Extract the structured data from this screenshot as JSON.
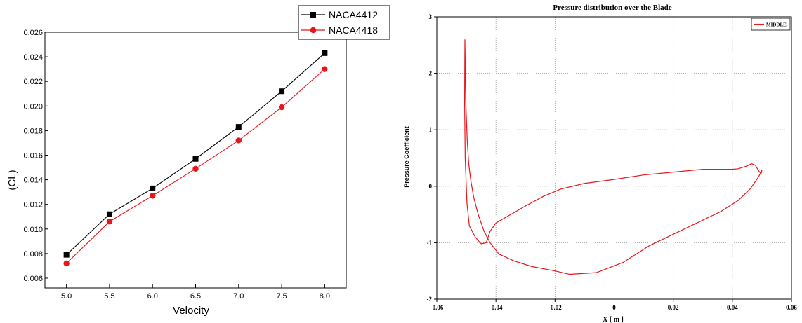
{
  "chart_data": [
    {
      "type": "line",
      "title": "",
      "xlabel": "Velocity",
      "ylabel": "(CL)",
      "xlim": [
        4.75,
        8.25
      ],
      "ylim": [
        0.0052,
        0.026
      ],
      "x_ticks": [
        5.0,
        5.5,
        6.0,
        6.5,
        7.0,
        7.5,
        8.0
      ],
      "x_tick_labels": [
        "5.0",
        "5.5",
        "6.0",
        "6.5",
        "7.0",
        "7.5",
        "8.0"
      ],
      "y_ticks": [
        0.006,
        0.008,
        0.01,
        0.012,
        0.014,
        0.016,
        0.018,
        0.02,
        0.022,
        0.024,
        0.026
      ],
      "y_tick_labels": [
        "0.006",
        "0.008",
        "0.010",
        "0.012",
        "0.014",
        "0.016",
        "0.018",
        "0.020",
        "0.022",
        "0.024",
        "0.026"
      ],
      "grid": false,
      "legend_position": "top-right",
      "x": [
        5.0,
        5.5,
        6.0,
        6.5,
        7.0,
        7.5,
        8.0
      ],
      "series": [
        {
          "name": "NACA4412",
          "color": "#000000",
          "marker": "square",
          "values": [
            0.0079,
            0.0112,
            0.0133,
            0.0157,
            0.0183,
            0.0212,
            0.0243
          ]
        },
        {
          "name": "NACA4418",
          "color": "#e8161b",
          "marker": "circle",
          "values": [
            0.0072,
            0.0106,
            0.0127,
            0.0149,
            0.0172,
            0.0199,
            0.023
          ]
        }
      ]
    },
    {
      "type": "line",
      "title": "Pressure distribution over the Blade",
      "xlabel": "X [ m ]",
      "ylabel": "Pressure Coefficient",
      "xlim": [
        -0.06,
        0.06
      ],
      "ylim": [
        -2,
        3
      ],
      "x_ticks": [
        -0.06,
        -0.04,
        -0.02,
        0,
        0.02,
        0.04,
        0.06
      ],
      "x_tick_labels": [
        "-0.06",
        "-0.04",
        "-0.02",
        "0",
        "0.02",
        "0.04",
        "0.06"
      ],
      "y_ticks": [
        -2,
        -1,
        0,
        1,
        2,
        3
      ],
      "y_tick_labels": [
        "-2",
        "-1",
        "0",
        "1",
        "2",
        "3"
      ],
      "grid": true,
      "legend_position": "top-right",
      "series": [
        {
          "name": "MIDDLE",
          "color": "#e8161b",
          "points": [
            [
              -0.0505,
              2.6
            ],
            [
              -0.0502,
              1.5
            ],
            [
              -0.0497,
              0.8
            ],
            [
              -0.0492,
              0.4
            ],
            [
              -0.0485,
              0.1
            ],
            [
              -0.0475,
              -0.2
            ],
            [
              -0.046,
              -0.5
            ],
            [
              -0.044,
              -0.8
            ],
            [
              -0.042,
              -1.0
            ],
            [
              -0.039,
              -1.2
            ],
            [
              -0.034,
              -1.32
            ],
            [
              -0.028,
              -1.42
            ],
            [
              -0.02,
              -1.5
            ],
            [
              -0.015,
              -1.56
            ],
            [
              -0.006,
              -1.53
            ],
            [
              0.003,
              -1.35
            ],
            [
              0.012,
              -1.05
            ],
            [
              0.02,
              -0.85
            ],
            [
              0.028,
              -0.65
            ],
            [
              0.036,
              -0.45
            ],
            [
              0.042,
              -0.25
            ],
            [
              0.046,
              -0.05
            ],
            [
              0.048,
              0.1
            ],
            [
              0.049,
              0.18
            ],
            [
              0.0497,
              0.25
            ],
            [
              0.05,
              0.28
            ],
            [
              0.0497,
              0.22
            ],
            [
              0.0488,
              0.28
            ],
            [
              0.0478,
              0.37
            ],
            [
              0.0465,
              0.4
            ],
            [
              0.045,
              0.36
            ],
            [
              0.042,
              0.31
            ],
            [
              0.04,
              0.3
            ],
            [
              0.03,
              0.3
            ],
            [
              0.02,
              0.25
            ],
            [
              0.01,
              0.2
            ],
            [
              0.0,
              0.12
            ],
            [
              -0.01,
              0.05
            ],
            [
              -0.018,
              -0.05
            ],
            [
              -0.024,
              -0.18
            ],
            [
              -0.03,
              -0.35
            ],
            [
              -0.035,
              -0.5
            ],
            [
              -0.04,
              -0.65
            ],
            [
              -0.042,
              -0.8
            ],
            [
              -0.0433,
              -1.0
            ],
            [
              -0.045,
              -1.02
            ],
            [
              -0.047,
              -0.9
            ],
            [
              -0.049,
              -0.7
            ],
            [
              -0.0498,
              -0.3
            ],
            [
              -0.0504,
              0.5
            ],
            [
              -0.0506,
              1.5
            ],
            [
              -0.0505,
              2.6
            ]
          ]
        }
      ]
    }
  ]
}
